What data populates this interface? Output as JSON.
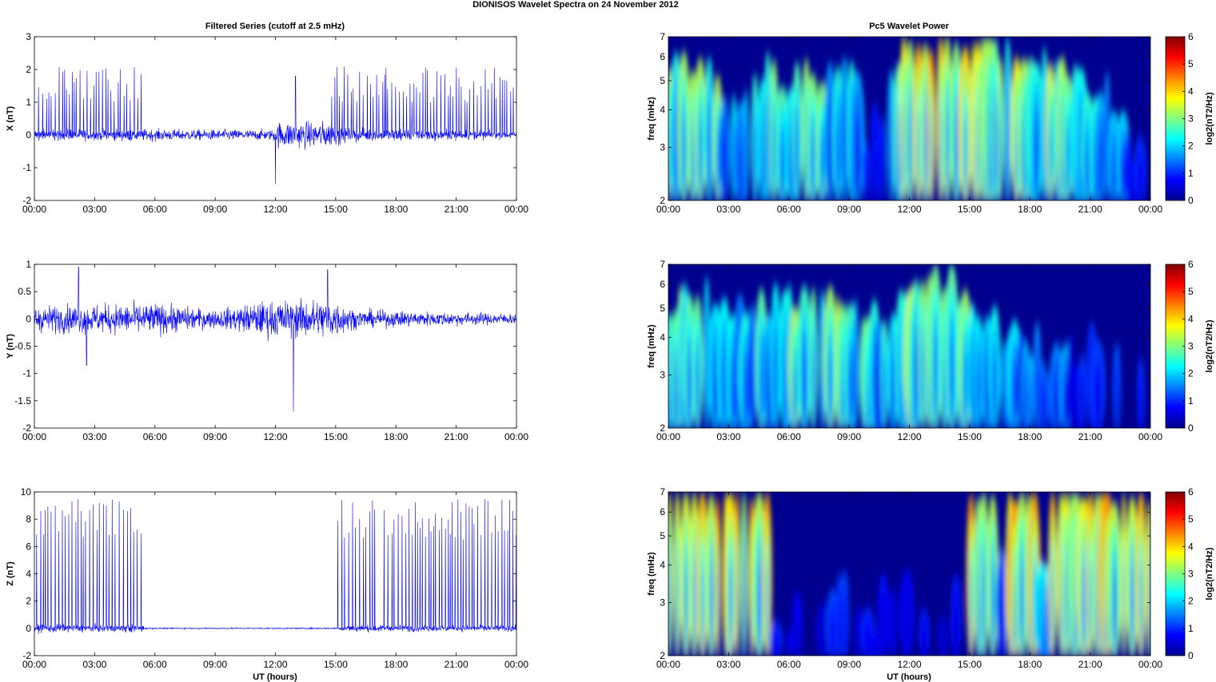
{
  "figure": {
    "title": "DIONISOS Wavelet Spectra on 24 November  2012",
    "left_column_title": "Filtered Series (cutoff at 2.5 mHz)",
    "right_column_title": "Pc5 Wavelet Power",
    "x_label": "UT (hours)"
  },
  "colors": {
    "trace": "#0000ff",
    "spectrogram_background": "#00008f",
    "colormap": "jet"
  },
  "chart_data": [
    {
      "type": "line",
      "panel": "X",
      "ylabel": "X (nT)",
      "xlim": [
        0,
        24
      ],
      "ylim": [
        -2,
        3
      ],
      "yticks": [
        -2,
        -1,
        0,
        1,
        2,
        3
      ],
      "xtick_labels": [
        "00:00",
        "03:00",
        "06:00",
        "09:00",
        "12:00",
        "15:00",
        "18:00",
        "21:00",
        "00:00"
      ],
      "noise_envelope": [
        [
          0,
          0.22
        ],
        [
          5.5,
          0.22
        ],
        [
          8,
          0.2
        ],
        [
          11.8,
          0.2
        ],
        [
          12.2,
          0.5
        ],
        [
          14.5,
          0.5
        ],
        [
          15.5,
          0.25
        ],
        [
          22,
          0.18
        ],
        [
          24,
          0.12
        ]
      ],
      "spike_windows": [
        [
          0.2,
          5.5
        ],
        [
          14.8,
          17.5
        ],
        [
          17.5,
          24
        ]
      ],
      "spike_range": [
        1.0,
        2.1
      ],
      "spike_events": [
        [
          13.0,
          1.8
        ],
        [
          12.0,
          -1.5
        ],
        [
          17.5,
          2.05
        ]
      ]
    },
    {
      "type": "line",
      "panel": "Y",
      "ylabel": "Y (nT)",
      "xlim": [
        0,
        24
      ],
      "ylim": [
        -2,
        1
      ],
      "yticks": [
        -2,
        -1.5,
        -1,
        -0.5,
        0,
        0.5,
        1
      ],
      "xtick_labels": [
        "00:00",
        "03:00",
        "06:00",
        "09:00",
        "12:00",
        "15:00",
        "18:00",
        "21:00",
        "00:00"
      ],
      "noise_envelope": [
        [
          0,
          0.3
        ],
        [
          6,
          0.35
        ],
        [
          9,
          0.2
        ],
        [
          11.5,
          0.4
        ],
        [
          14.8,
          0.45
        ],
        [
          16,
          0.2
        ],
        [
          24,
          0.12
        ]
      ],
      "spike_windows": [],
      "spike_range": [
        0,
        0
      ],
      "spike_events": [
        [
          2.2,
          0.95
        ],
        [
          12.9,
          -1.7
        ],
        [
          14.6,
          0.9
        ],
        [
          2.6,
          -0.85
        ]
      ]
    },
    {
      "type": "line",
      "panel": "Z",
      "ylabel": "Z (nT)",
      "xlim": [
        0,
        24
      ],
      "ylim": [
        -2,
        10
      ],
      "yticks": [
        -2,
        0,
        2,
        4,
        6,
        8,
        10
      ],
      "xtick_labels": [
        "00:00",
        "03:00",
        "06:00",
        "09:00",
        "12:00",
        "15:00",
        "18:00",
        "21:00",
        "00:00"
      ],
      "noise_envelope": [
        [
          0,
          0.35
        ],
        [
          5.4,
          0.35
        ],
        [
          5.5,
          0.06
        ],
        [
          15.2,
          0.06
        ],
        [
          15.3,
          0.3
        ],
        [
          24,
          0.3
        ]
      ],
      "spike_windows": [
        [
          0.1,
          5.4
        ],
        [
          15.1,
          17.0
        ],
        [
          17.4,
          24
        ]
      ],
      "spike_range": [
        6.5,
        9.5
      ],
      "spike_events": []
    },
    {
      "type": "heatmap",
      "panel": "X wavelet",
      "ylabel": "freq (mHz)",
      "ylim": [
        2,
        7
      ],
      "yscale": "log",
      "yticks": [
        2,
        3,
        4,
        5,
        6,
        7
      ],
      "xlim": [
        0,
        24
      ],
      "xtick_labels": [
        "00:00",
        "03:00",
        "06:00",
        "09:00",
        "12:00",
        "15:00",
        "18:00",
        "21:00",
        "00:00"
      ],
      "colorbar": {
        "label": "log2(nT2/Hz)",
        "range": [
          0,
          6
        ],
        "ticks": [
          0,
          1,
          2,
          3,
          4,
          5,
          6
        ]
      },
      "activity": [
        [
          0,
          2.8
        ],
        [
          1,
          2.5
        ],
        [
          2.4,
          2.6
        ],
        [
          3,
          1.2
        ],
        [
          4,
          1.8
        ],
        [
          5,
          2.4
        ],
        [
          6,
          2.0
        ],
        [
          7,
          2.4
        ],
        [
          8,
          1.9
        ],
        [
          9,
          2.2
        ],
        [
          9.8,
          0.8
        ],
        [
          10.8,
          0.9
        ],
        [
          11.8,
          3.0
        ],
        [
          13,
          3.4
        ],
        [
          14.5,
          3.2
        ],
        [
          16,
          3.0
        ],
        [
          17.5,
          2.7
        ],
        [
          19,
          2.6
        ],
        [
          20.5,
          2.0
        ],
        [
          22.5,
          1.2
        ],
        [
          23.5,
          0.2
        ],
        [
          24,
          0.1
        ]
      ]
    },
    {
      "type": "heatmap",
      "panel": "Y wavelet",
      "ylabel": "freq (mHz)",
      "ylim": [
        2,
        7
      ],
      "yscale": "log",
      "yticks": [
        2,
        3,
        4,
        5,
        6,
        7
      ],
      "xlim": [
        0,
        24
      ],
      "xtick_labels": [
        "00:00",
        "03:00",
        "06:00",
        "09:00",
        "12:00",
        "15:00",
        "18:00",
        "21:00",
        "00:00"
      ],
      "colorbar": {
        "label": "log2(nT2/Hz)",
        "range": [
          0,
          6
        ],
        "ticks": [
          0,
          1,
          2,
          3,
          4,
          5,
          6
        ]
      },
      "activity": [
        [
          0,
          2.0
        ],
        [
          2,
          2.6
        ],
        [
          4,
          1.6
        ],
        [
          6,
          2.3
        ],
        [
          8,
          2.4
        ],
        [
          9,
          2.5
        ],
        [
          10.5,
          1.6
        ],
        [
          12,
          2.8
        ],
        [
          14,
          3.0
        ],
        [
          15.5,
          1.6
        ],
        [
          17,
          1.3
        ],
        [
          18.5,
          0.8
        ],
        [
          21,
          0.9
        ],
        [
          22.5,
          0.6
        ],
        [
          24,
          0.0
        ]
      ]
    },
    {
      "type": "heatmap",
      "panel": "Z wavelet",
      "ylabel": "freq (mHz)",
      "ylim": [
        2,
        7
      ],
      "yscale": "log",
      "yticks": [
        2,
        3,
        4,
        5,
        6,
        7
      ],
      "xlim": [
        0,
        24
      ],
      "xtick_labels": [
        "00:00",
        "03:00",
        "06:00",
        "09:00",
        "12:00",
        "15:00",
        "18:00",
        "21:00",
        "00:00"
      ],
      "colorbar": {
        "label": "log2(nT2/Hz)",
        "range": [
          0,
          6
        ],
        "ticks": [
          0,
          1,
          2,
          3,
          4,
          5,
          6
        ]
      },
      "activity": [
        [
          0,
          3.6
        ],
        [
          5.2,
          3.6
        ],
        [
          5.35,
          0.3
        ],
        [
          14.8,
          0.3
        ],
        [
          15.0,
          3.4
        ],
        [
          16.4,
          3.4
        ],
        [
          16.6,
          1.2
        ],
        [
          16.9,
          1.2
        ],
        [
          17.0,
          3.4
        ],
        [
          18.4,
          3.4
        ],
        [
          18.6,
          1.4
        ],
        [
          18.9,
          1.4
        ],
        [
          19.0,
          3.5
        ],
        [
          24,
          3.4
        ]
      ]
    }
  ]
}
